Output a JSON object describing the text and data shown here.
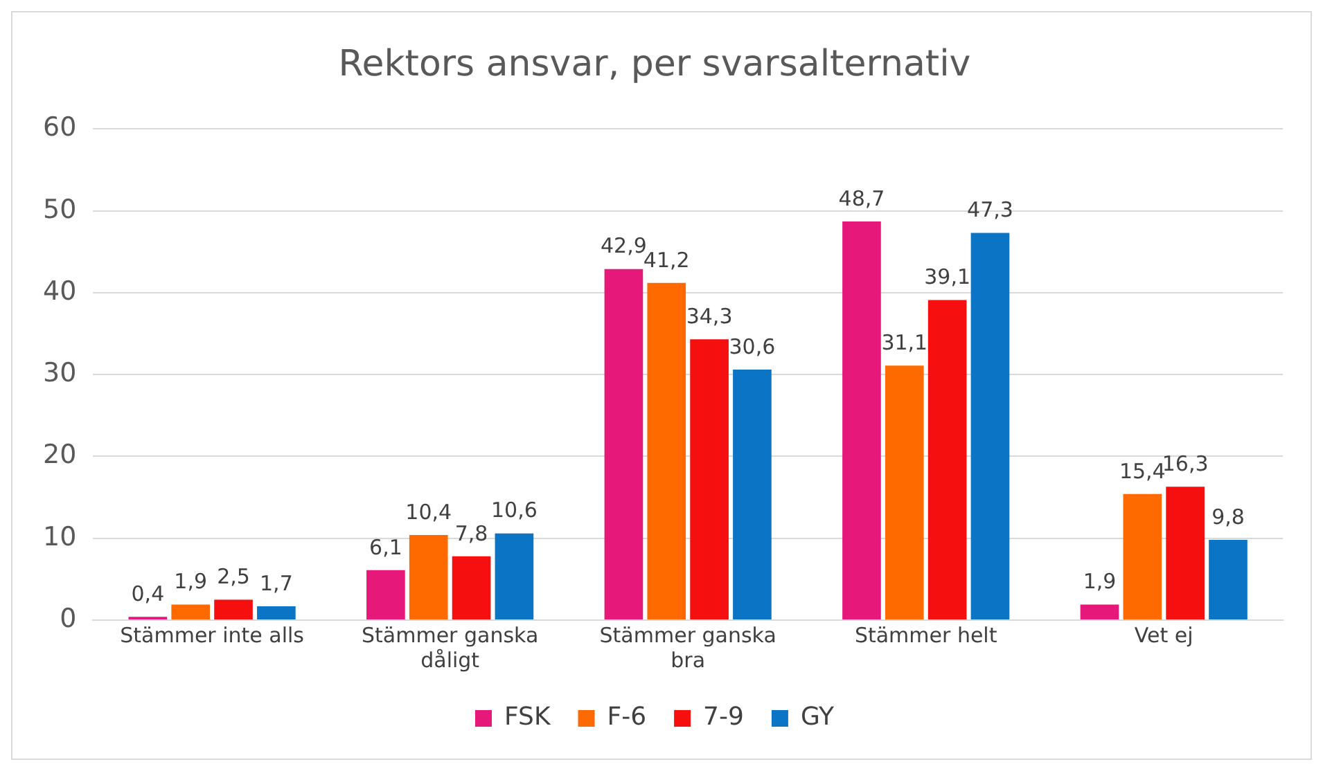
{
  "chart_data": {
    "type": "bar",
    "title": "Rektors ansvar, per svarsalternativ",
    "categories": [
      "Stämmer inte alls",
      "Stämmer ganska dåligt",
      "Stämmer ganska bra",
      "Stämmer helt",
      "Vet ej"
    ],
    "series": [
      {
        "name": "FSK",
        "color": "#e6197a",
        "values": [
          0.4,
          6.1,
          42.9,
          48.7,
          1.9
        ],
        "value_labels": [
          "0,4",
          "6,1",
          "42,9",
          "48,7",
          "1,9"
        ]
      },
      {
        "name": "F-6",
        "color": "#ff6a00",
        "values": [
          1.9,
          10.4,
          41.2,
          31.1,
          15.4
        ],
        "value_labels": [
          "1,9",
          "10,4",
          "41,2",
          "31,1",
          "15,4"
        ]
      },
      {
        "name": "7-9",
        "color": "#f50f0f",
        "values": [
          2.5,
          7.8,
          34.3,
          39.1,
          16.3
        ],
        "value_labels": [
          "2,5",
          "7,8",
          "34,3",
          "39,1",
          "16,3"
        ]
      },
      {
        "name": "GY",
        "color": "#0b74c4",
        "values": [
          1.7,
          10.6,
          30.6,
          47.3,
          9.8
        ],
        "value_labels": [
          "1,7",
          "10,6",
          "30,6",
          "47,3",
          "9,8"
        ]
      }
    ],
    "ylim": [
      0,
      60
    ],
    "yticks": [
      0,
      10,
      20,
      30,
      40,
      50,
      60
    ],
    "grid": "y",
    "legend": "bottom"
  }
}
